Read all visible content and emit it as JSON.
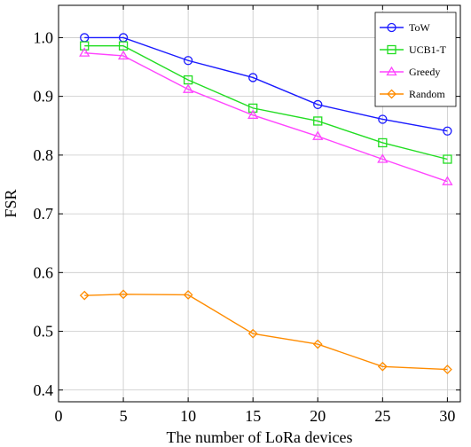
{
  "chart_data": {
    "type": "line",
    "title": "",
    "xlabel": "The number of LoRa devices",
    "ylabel": "FSR",
    "xlim": [
      0,
      31
    ],
    "ylim": [
      0.38,
      1.055
    ],
    "xticks": [
      0,
      5,
      10,
      15,
      20,
      25,
      30
    ],
    "yticks": [
      0.4,
      0.5,
      0.6,
      0.7,
      0.8,
      0.9,
      1.0
    ],
    "xtick_labels": [
      "0",
      "5",
      "10",
      "15",
      "20",
      "25",
      "30"
    ],
    "ytick_labels": [
      "0.4",
      "0.5",
      "0.6",
      "0.7",
      "0.8",
      "0.9",
      "1.0"
    ],
    "grid": true,
    "legend_position": "top-right",
    "x": [
      2,
      5,
      10,
      15,
      20,
      25,
      30
    ],
    "series": [
      {
        "name": "ToW",
        "color": "#1a1aff",
        "marker": "circle",
        "values": [
          1.0,
          1.0,
          0.961,
          0.932,
          0.886,
          0.861,
          0.841
        ]
      },
      {
        "name": "UCB1-T",
        "color": "#22dd22",
        "marker": "square",
        "values": [
          0.986,
          0.986,
          0.928,
          0.88,
          0.858,
          0.821,
          0.793
        ]
      },
      {
        "name": "Greedy",
        "color": "#ff44ff",
        "marker": "triangle",
        "values": [
          0.974,
          0.969,
          0.912,
          0.868,
          0.832,
          0.793,
          0.755
        ]
      },
      {
        "name": "Random",
        "color": "#ff8c00",
        "marker": "diamond",
        "values": [
          0.561,
          0.563,
          0.562,
          0.496,
          0.478,
          0.44,
          0.435
        ]
      }
    ]
  }
}
